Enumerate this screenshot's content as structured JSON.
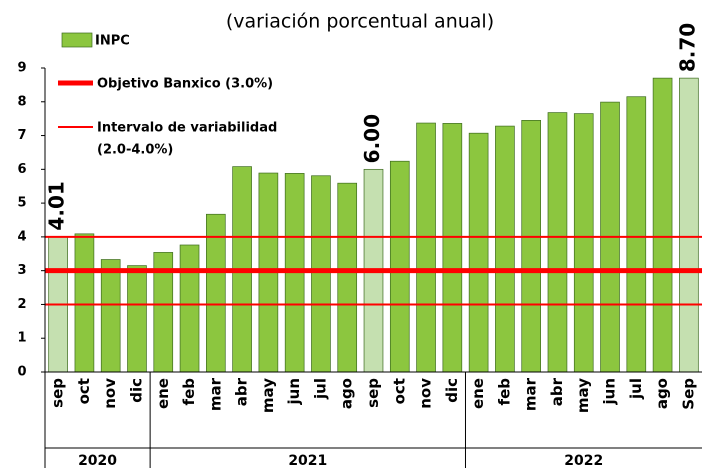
{
  "chart_data": {
    "type": "bar",
    "subtitle": "(variación porcentual anual)",
    "groups": [
      {
        "label": "2020",
        "categories": [
          "sep",
          "oct",
          "nov",
          "dic"
        ]
      },
      {
        "label": "2021",
        "categories": [
          "ene",
          "feb",
          "mar",
          "abr",
          "may",
          "jun",
          "jul",
          "ago",
          "sep",
          "oct",
          "nov",
          "dic"
        ]
      },
      {
        "label": "2022",
        "categories": [
          "ene",
          "feb",
          "mar",
          "abr",
          "may",
          "jun",
          "jul",
          "ago",
          "Sep"
        ]
      }
    ],
    "series": [
      {
        "name": "INPC",
        "color": "#8cc63f",
        "highlight_color": "#c5e0b0",
        "values": [
          4.01,
          4.09,
          3.33,
          3.15,
          3.54,
          3.76,
          4.67,
          6.08,
          5.89,
          5.88,
          5.81,
          5.59,
          6.0,
          6.24,
          7.37,
          7.36,
          7.07,
          7.28,
          7.45,
          7.68,
          7.65,
          7.99,
          8.15,
          8.7,
          8.7
        ],
        "value_labels": [
          "4.01",
          null,
          null,
          null,
          null,
          null,
          null,
          null,
          null,
          null,
          null,
          null,
          "6.00",
          null,
          null,
          null,
          null,
          null,
          null,
          null,
          null,
          null,
          null,
          null,
          "8.70"
        ]
      }
    ],
    "reference_lines": [
      {
        "name": "Objetivo Banxico (3.0%)",
        "values": [
          3
        ],
        "color": "#ff0000",
        "line_width": 5
      },
      {
        "label_lines": [
          "Intervalo de variabilidad",
          "(2.0-4.0%)"
        ],
        "values": [
          2,
          4
        ],
        "color": "#ff0000",
        "line_width": 2
      }
    ],
    "ylim": [
      0,
      9
    ],
    "yticks": [
      0,
      1,
      2,
      3,
      4,
      5,
      6,
      7,
      8,
      9
    ]
  }
}
